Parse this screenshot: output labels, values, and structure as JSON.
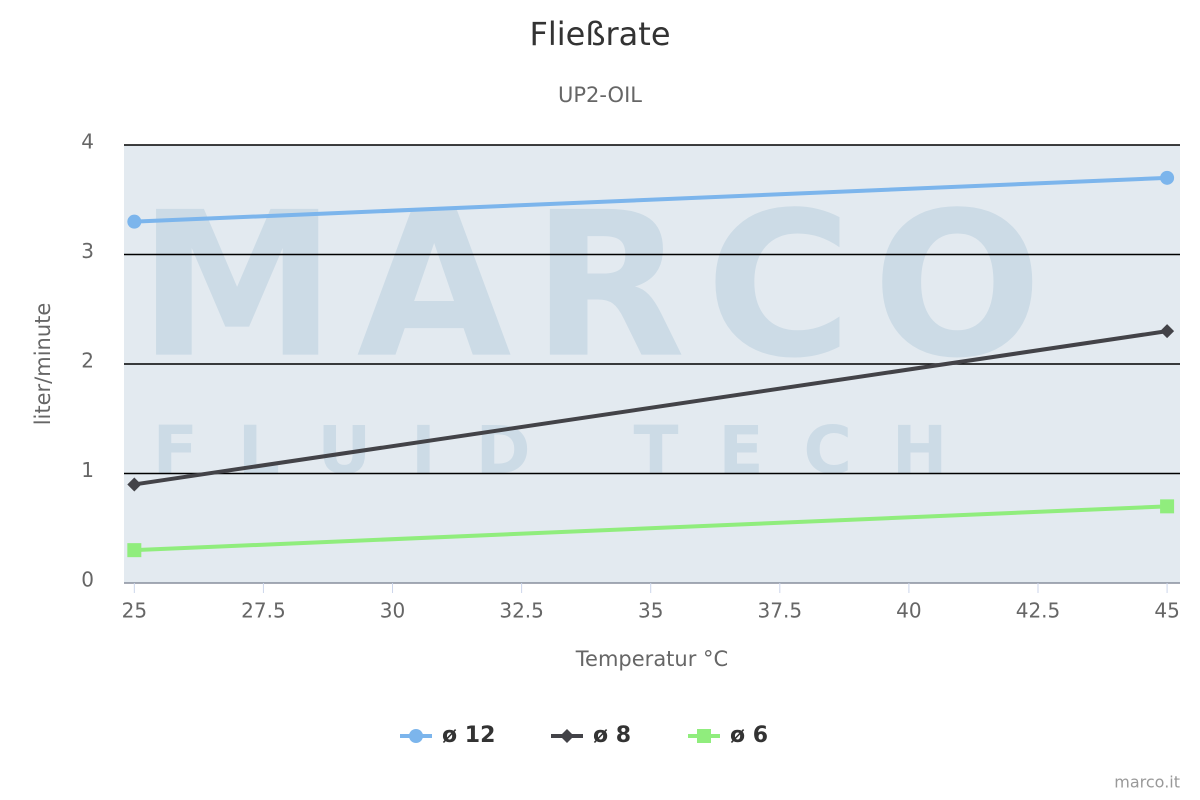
{
  "chart_data": {
    "type": "line",
    "title": "Fließrate",
    "subtitle": "UP2-OIL",
    "x_label": "Temperatur °C",
    "y_label": "liter/minute",
    "x": [
      25,
      45
    ],
    "series": [
      {
        "name": "ø 12",
        "color": "#7cb5ec",
        "marker": "circle",
        "values": [
          3.3,
          3.7
        ]
      },
      {
        "name": "ø 8",
        "color": "#434348",
        "marker": "diamond",
        "values": [
          0.9,
          2.3
        ]
      },
      {
        "name": "ø 6",
        "color": "#90ed7d",
        "marker": "square",
        "values": [
          0.3,
          0.7
        ]
      }
    ],
    "xlim": [
      24.8,
      45.25
    ],
    "xticks": [
      25,
      27.5,
      30,
      32.5,
      35,
      37.5,
      40,
      42.5,
      45
    ],
    "ylim": [
      0,
      4
    ],
    "yticks": [
      0,
      1,
      2,
      3,
      4
    ],
    "grid": true,
    "legend": "bottom",
    "watermark": [
      "MARCO",
      "FLUID TECH"
    ],
    "credits": "marco.it"
  }
}
